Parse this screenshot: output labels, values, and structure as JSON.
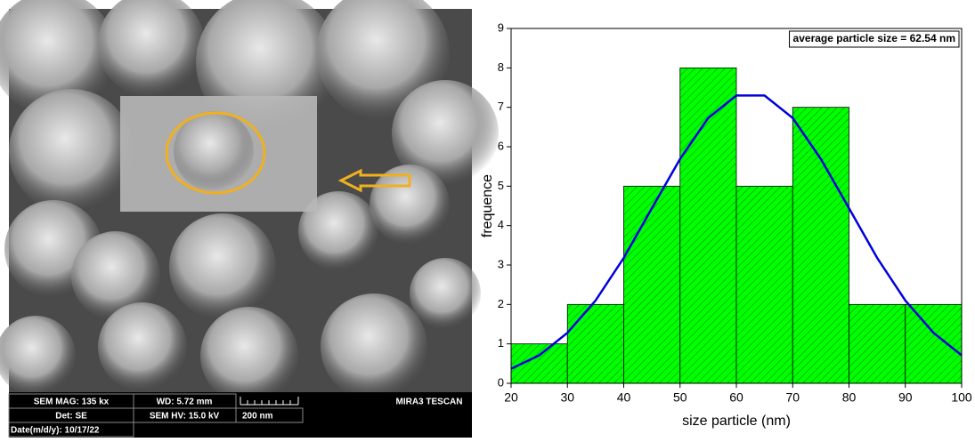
{
  "sem_image": {
    "mag": "SEM MAG: 135 kx",
    "wd": "WD: 5.72 mm",
    "brand": "MIRA3 TESCAN",
    "det": "Det: SE",
    "hv": "SEM HV: 15.0 kV",
    "scale": "200 nm",
    "date": "Date(m/d/y): 10/17/22"
  },
  "chart_data": {
    "type": "histogram",
    "annotation": "average particle size = 62.54 nm",
    "x_label": "size particle  (nm)",
    "y_label": "frequence",
    "bins": [
      20,
      30,
      40,
      50,
      60,
      70,
      80,
      90,
      100
    ],
    "counts": [
      1,
      2,
      5,
      8,
      5,
      7,
      2,
      2
    ],
    "bar_color": "#00ff00",
    "fit": {
      "color": "#0000dd",
      "x": [
        20,
        25,
        30,
        35,
        40,
        45,
        50,
        55,
        60,
        65,
        70,
        75,
        80,
        85,
        90,
        95,
        100
      ],
      "values": [
        0.37,
        0.71,
        1.28,
        2.1,
        3.18,
        4.44,
        5.69,
        6.73,
        7.3,
        7.3,
        6.73,
        5.69,
        4.44,
        3.18,
        2.1,
        1.28,
        0.71
      ]
    },
    "xlim": [
      20,
      100
    ],
    "xticks": [
      20,
      30,
      40,
      50,
      60,
      70,
      80,
      90,
      100
    ],
    "ylim": [
      0,
      9
    ],
    "yticks": [
      0,
      1,
      2,
      3,
      4,
      5,
      6,
      7,
      8,
      9
    ]
  }
}
